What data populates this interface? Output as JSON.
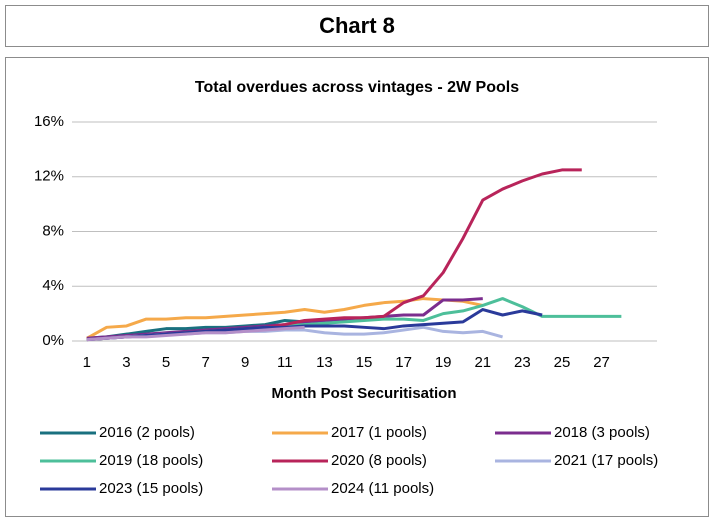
{
  "header": {
    "title": "Chart 8"
  },
  "chart_data": {
    "type": "line",
    "title": "Total overdues across vintages - 2W Pools",
    "x_label": "Month Post Securitisation",
    "x": [
      1,
      2,
      3,
      4,
      5,
      6,
      7,
      8,
      9,
      10,
      11,
      12,
      13,
      14,
      15,
      16,
      17,
      18,
      19,
      20,
      21,
      22,
      23,
      24,
      25,
      26,
      27,
      28
    ],
    "xlim": [
      0.25,
      29.8
    ],
    "xticks": [
      1,
      3,
      5,
      7,
      9,
      11,
      13,
      15,
      17,
      19,
      21,
      23,
      25,
      27
    ],
    "ylim": [
      0,
      16
    ],
    "yticks": [
      {
        "value": 0,
        "label": "0%"
      },
      {
        "value": 4,
        "label": "4%"
      },
      {
        "value": 8,
        "label": "8%"
      },
      {
        "value": 12,
        "label": "12%"
      },
      {
        "value": 16,
        "label": "16%"
      }
    ],
    "grid": true,
    "series": [
      {
        "name": "2016 (2 pools)",
        "color": "#19707f",
        "values": [
          0.2,
          0.3,
          0.5,
          0.7,
          0.9,
          0.9,
          1.0,
          1.0,
          1.1,
          1.2,
          1.5,
          1.4,
          null,
          null,
          null,
          null,
          null,
          null,
          null,
          null,
          null,
          null,
          null,
          null,
          null,
          null,
          null,
          null
        ]
      },
      {
        "name": "2017 (1 pools)",
        "color": "#f5a94a",
        "values": [
          0.2,
          1.0,
          1.1,
          1.6,
          1.6,
          1.7,
          1.7,
          1.8,
          1.9,
          2.0,
          2.1,
          2.3,
          2.1,
          2.3,
          2.6,
          2.8,
          2.9,
          3.1,
          3.0,
          2.9,
          2.6,
          null,
          null,
          null,
          null,
          null,
          null,
          null
        ]
      },
      {
        "name": "2018 (3 pools)",
        "color": "#7b2d8e",
        "values": [
          0.2,
          0.3,
          0.4,
          0.5,
          0.6,
          0.7,
          0.8,
          0.9,
          1.0,
          1.1,
          1.2,
          1.4,
          1.5,
          1.6,
          1.7,
          1.8,
          1.9,
          1.9,
          3.0,
          3.0,
          3.1,
          null,
          null,
          null,
          null,
          null,
          null,
          null
        ]
      },
      {
        "name": "2019 (18 pools)",
        "color": "#4dbf9a",
        "values": [
          0.1,
          0.2,
          0.3,
          0.4,
          0.5,
          0.6,
          0.7,
          0.8,
          0.9,
          1.0,
          1.1,
          1.2,
          1.3,
          1.4,
          1.5,
          1.6,
          1.6,
          1.5,
          2.0,
          2.2,
          2.6,
          3.1,
          2.5,
          1.8,
          1.8,
          1.8,
          1.8,
          1.8
        ]
      },
      {
        "name": "2020 (8 pools)",
        "color": "#b8245a",
        "values": [
          0.1,
          0.2,
          0.3,
          0.4,
          0.5,
          0.6,
          0.7,
          0.8,
          0.9,
          1.0,
          1.2,
          1.5,
          1.6,
          1.7,
          1.7,
          1.8,
          2.8,
          3.3,
          5.0,
          7.5,
          10.3,
          11.1,
          11.7,
          12.2,
          12.5,
          12.5,
          null,
          null
        ]
      },
      {
        "name": "2021 (17 pools)",
        "color": "#a9b4e0",
        "values": [
          0.1,
          0.2,
          0.3,
          0.4,
          0.5,
          0.5,
          0.6,
          0.6,
          0.7,
          0.7,
          0.8,
          0.8,
          0.6,
          0.5,
          0.5,
          0.6,
          0.8,
          1.0,
          0.7,
          0.6,
          0.7,
          0.3,
          null,
          null,
          null,
          null,
          null,
          null
        ]
      },
      {
        "name": "2023 (15 pools)",
        "color": "#2a3a9a",
        "values": [
          0.1,
          0.2,
          0.3,
          0.4,
          0.5,
          0.6,
          0.7,
          0.8,
          0.9,
          1.0,
          1.0,
          1.1,
          1.1,
          1.1,
          1.0,
          0.9,
          1.1,
          1.2,
          1.3,
          1.4,
          2.3,
          1.9,
          2.2,
          1.9,
          null,
          null,
          null,
          null
        ]
      },
      {
        "name": "2024 (11 pools)",
        "color": "#b48fc8",
        "values": [
          0.1,
          0.2,
          0.3,
          0.3,
          0.4,
          0.5,
          0.6,
          0.6,
          0.7,
          0.8,
          0.9,
          1.0,
          null,
          null,
          null,
          null,
          null,
          null,
          null,
          null,
          null,
          null,
          null,
          null,
          null,
          null,
          null,
          null
        ]
      }
    ]
  }
}
